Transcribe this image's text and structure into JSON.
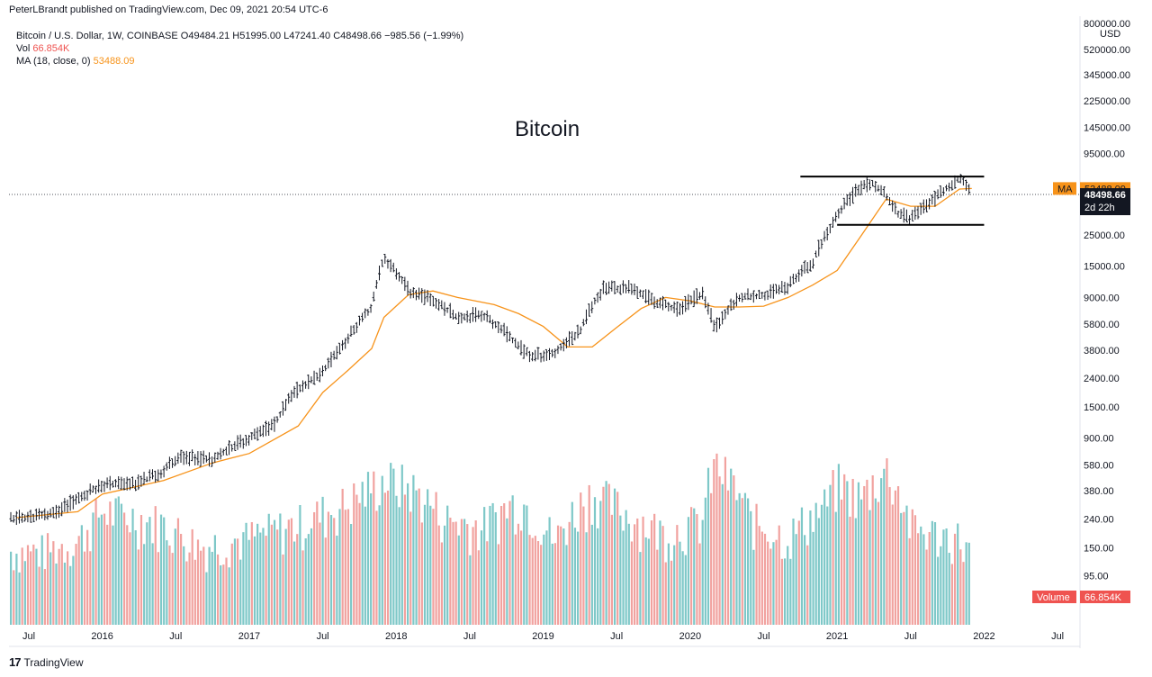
{
  "header": {
    "publisher": "PeterLBrandt published on TradingView.com, Dec 09, 2021 20:54 UTC-6"
  },
  "legend": {
    "symbol_line": "Bitcoin / U.S. Dollar, 1W, COINBASE  O49484.21  H51995.00  L47241.40  C48498.66  −985.56 (−1.99%)",
    "vol_label": "Vol",
    "vol_value": "66.854K",
    "ma_label": "MA (18, close, 0)",
    "ma_value": "53488.09"
  },
  "footer": {
    "logo": "17",
    "brand": "TradingView"
  },
  "colors": {
    "candle": "#131722",
    "ma_line": "#f7931a",
    "vol_up": "#7ec8c8",
    "vol_down": "#f1a29f",
    "ma_tag": "#f7931a",
    "price_tag": "#131722",
    "volume_tag": "#ef5350"
  },
  "chart_data": {
    "type": "line",
    "title": "Bitcoin",
    "scale": "log",
    "y_axis_unit": "USD",
    "y_ticks": [
      "800000.00",
      "520000.00",
      "345000.00",
      "225000.00",
      "145000.00",
      "95000.00",
      "25000.00",
      "15000.00",
      "9000.00",
      "5800.00",
      "3800.00",
      "2400.00",
      "1500.00",
      "900.00",
      "580.00",
      "380.00",
      "240.00",
      "150.00",
      "95.00"
    ],
    "x_ticks": [
      "Jul",
      "2016",
      "Jul",
      "2017",
      "Jul",
      "2018",
      "Jul",
      "2019",
      "Jul",
      "2020",
      "Jul",
      "2021",
      "Jul",
      "2022",
      "Jul"
    ],
    "price_series": {
      "name": "Bitcoin / U.S. Dollar",
      "x": [
        "2015-06",
        "2015-09",
        "2015-11",
        "2016-01",
        "2016-04",
        "2016-06",
        "2016-07",
        "2016-10",
        "2017-01",
        "2017-03",
        "2017-05",
        "2017-07",
        "2017-09",
        "2017-11",
        "2017-12",
        "2018-02",
        "2018-04",
        "2018-06",
        "2018-08",
        "2018-11",
        "2018-12",
        "2019-02",
        "2019-04",
        "2019-06",
        "2019-08",
        "2019-10",
        "2019-12",
        "2020-02",
        "2020-03",
        "2020-05",
        "2020-07",
        "2020-09",
        "2020-11",
        "2020-12",
        "2021-01",
        "2021-03",
        "2021-04",
        "2021-06",
        "2021-07",
        "2021-09",
        "2021-11",
        "2021-12"
      ],
      "values": [
        240,
        260,
        330,
        420,
        430,
        520,
        650,
        640,
        900,
        1100,
        2000,
        2600,
        4500,
        7500,
        17000,
        10000,
        8500,
        6500,
        6800,
        4000,
        3400,
        3600,
        5200,
        10500,
        10500,
        8500,
        7300,
        9500,
        5300,
        9000,
        9300,
        10700,
        16000,
        24000,
        34000,
        55000,
        58000,
        35000,
        33000,
        45000,
        64000,
        48498.66
      ]
    },
    "ma_series": {
      "name": "MA (18, close, 0)",
      "x": [
        "2015-06",
        "2015-11",
        "2016-01",
        "2016-06",
        "2016-10",
        "2017-01",
        "2017-05",
        "2017-07",
        "2017-09",
        "2017-11",
        "2017-12",
        "2018-02",
        "2018-04",
        "2018-06",
        "2018-09",
        "2018-11",
        "2019-01",
        "2019-03",
        "2019-05",
        "2019-07",
        "2019-09",
        "2019-11",
        "2020-01",
        "2020-03",
        "2020-05",
        "2020-07",
        "2020-09",
        "2020-11",
        "2021-01",
        "2021-03",
        "2021-05",
        "2021-07",
        "2021-09",
        "2021-11",
        "2021-12"
      ],
      "values": [
        245,
        270,
        360,
        450,
        600,
        700,
        1100,
        1900,
        2700,
        3900,
        6500,
        9400,
        10000,
        9000,
        8000,
        6900,
        5600,
        4000,
        4000,
        5500,
        7500,
        9000,
        8500,
        7700,
        7700,
        7800,
        9000,
        11000,
        14000,
        25000,
        45000,
        40000,
        40000,
        53000,
        53488.09
      ]
    },
    "volume_series": {
      "name": "Vol",
      "x": [
        "2015-08",
        "2015-11",
        "2016-01",
        "2016-06",
        "2016-09",
        "2017-01",
        "2017-05",
        "2017-09",
        "2017-12",
        "2018-02",
        "2018-05",
        "2018-08",
        "2018-11",
        "2019-02",
        "2019-05",
        "2019-08",
        "2019-11",
        "2020-02",
        "2020-03",
        "2020-06",
        "2020-09",
        "2020-12",
        "2021-01",
        "2021-03",
        "2021-05",
        "2021-07",
        "2021-09",
        "2021-11",
        "2021-12"
      ],
      "values": [
        80,
        100,
        200,
        150,
        90,
        110,
        150,
        230,
        380,
        330,
        170,
        140,
        250,
        100,
        290,
        180,
        120,
        160,
        500,
        160,
        110,
        220,
        350,
        260,
        460,
        140,
        120,
        110,
        66.854
      ]
    },
    "annotations": {
      "resistance_line": 65000,
      "support_line": 29500
    },
    "price_tags": {
      "ma_label": "MA",
      "ma_value": "53488.09",
      "close_value": "48498.66",
      "countdown": "2d 22h",
      "volume_label": "Volume",
      "volume_value": "66.854K"
    }
  }
}
